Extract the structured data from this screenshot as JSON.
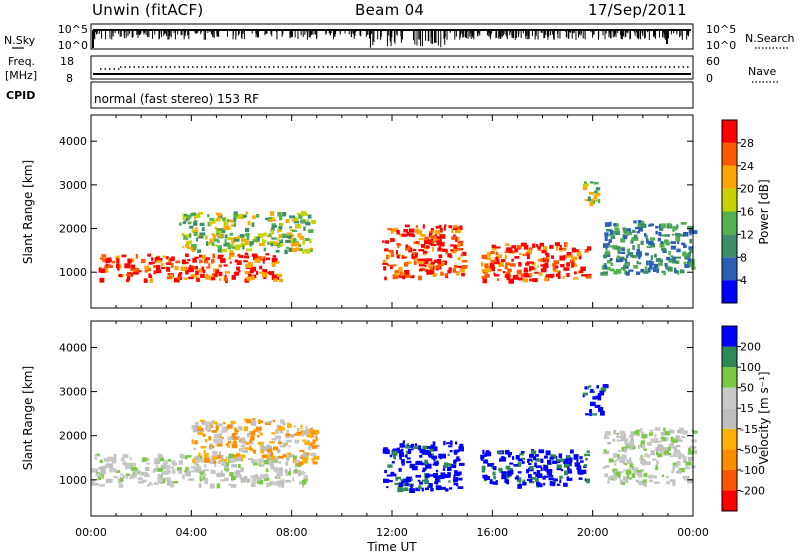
{
  "header": {
    "station": "Unwin (fitACF)",
    "beam": "Beam 04",
    "date": "17/Sep/2011"
  },
  "top_panels": {
    "nsky": {
      "label": "N.Sky",
      "ticks": [
        "10^5",
        "10^0"
      ]
    },
    "nsearch": {
      "label": "N.Search",
      "ticks": [
        "10^5",
        "10^0"
      ]
    },
    "freq": {
      "label_line1": "Freq.",
      "label_line2": "[MHz]",
      "ticks": [
        "18",
        "8"
      ]
    },
    "nave": {
      "label": "Nave",
      "ticks": [
        "60",
        "0"
      ]
    },
    "cpid": {
      "label": "CPID",
      "mode": "normal (fast stereo) 153 RF"
    }
  },
  "chart_data": [
    {
      "type": "heatmap",
      "title": "",
      "xlabel": "Time UT",
      "ylabel": "Slant Range [km]",
      "x_ticks": [
        "00:00",
        "04:00",
        "08:00",
        "12:00",
        "16:00",
        "20:00",
        "00:00"
      ],
      "y_ticks": [
        1000,
        2000,
        3000,
        4000
      ],
      "xlim_hours": [
        0,
        24
      ],
      "ylim": [
        180,
        4600
      ],
      "colorbar": {
        "label": "Power [dB]",
        "ticks": [
          "4",
          "8",
          "12",
          "16",
          "20",
          "24",
          "28"
        ],
        "colors": [
          "#0000ff",
          "#2a5fb4",
          "#3c8f6a",
          "#55b050",
          "#c8d400",
          "#ffa500",
          "#ff5a00",
          "#ff0000"
        ]
      },
      "regions": [
        {
          "t0": 0.3,
          "t1": 7.5,
          "r0": 850,
          "r1": 1450,
          "value": "high"
        },
        {
          "t0": 3.5,
          "t1": 8.8,
          "r0": 1500,
          "r1": 2400,
          "value": "medium"
        },
        {
          "t0": 11.6,
          "t1": 14.8,
          "r0": 900,
          "r1": 2100,
          "value": "high"
        },
        {
          "t0": 15.5,
          "t1": 19.8,
          "r0": 850,
          "r1": 1700,
          "value": "high"
        },
        {
          "t0": 19.5,
          "t1": 20.3,
          "r0": 2600,
          "r1": 3100,
          "value": "medium"
        },
        {
          "t0": 20.3,
          "t1": 24.0,
          "r0": 1000,
          "r1": 2200,
          "value": "low"
        }
      ]
    },
    {
      "type": "heatmap",
      "title": "",
      "xlabel": "Time UT",
      "ylabel": "Slant Range [km]",
      "x_ticks": [
        "00:00",
        "04:00",
        "08:00",
        "12:00",
        "16:00",
        "20:00",
        "00:00"
      ],
      "y_ticks": [
        1000,
        2000,
        3000,
        4000
      ],
      "xlim_hours": [
        0,
        24
      ],
      "ylim": [
        180,
        4600
      ],
      "colorbar": {
        "label": "Velocity [m s⁻¹]",
        "ticks": [
          "-200",
          "-100",
          "-50",
          "-15",
          "15",
          "50",
          "100",
          "200"
        ],
        "colors": [
          "#ff0000",
          "#ff5500",
          "#ff8c00",
          "#ffb000",
          "#bebebe",
          "#c8c8c8",
          "#7ac943",
          "#2e8b57",
          "#0000ff"
        ]
      },
      "regions": [
        {
          "t0": 0.0,
          "t1": 8.5,
          "r0": 900,
          "r1": 1600,
          "value": "-15..15"
        },
        {
          "t0": 4.0,
          "t1": 9.0,
          "r0": 1400,
          "r1": 2400,
          "value": "-50..-15"
        },
        {
          "t0": 11.6,
          "t1": 14.7,
          "r0": 800,
          "r1": 1900,
          "value": ">200"
        },
        {
          "t0": 15.5,
          "t1": 19.8,
          "r0": 900,
          "r1": 1700,
          "value": ">200"
        },
        {
          "t0": 19.6,
          "t1": 20.4,
          "r0": 2500,
          "r1": 3200,
          "value": ">200"
        },
        {
          "t0": 20.4,
          "t1": 24.0,
          "r0": 950,
          "r1": 2200,
          "value": "-15..15"
        }
      ]
    }
  ]
}
